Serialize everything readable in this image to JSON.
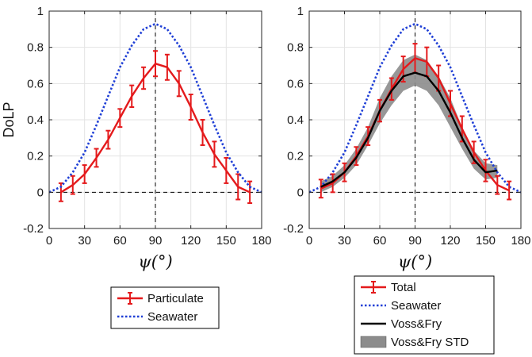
{
  "chart_data": [
    {
      "type": "line",
      "ylabel": "DoLP",
      "xlabel": "ψ(°)",
      "xlim": [
        0,
        180
      ],
      "ylim": [
        -0.2,
        1
      ],
      "xticks": [
        "0",
        "30",
        "60",
        "90",
        "120",
        "150",
        "180"
      ],
      "yticks": [
        "-0.2",
        "0",
        "0.2",
        "0.4",
        "0.6",
        "0.8",
        "1"
      ],
      "grid": true,
      "reference_lines": {
        "vertical_x": 90,
        "horizontal_y": 0
      },
      "legend_position": "below",
      "series": [
        {
          "name": "Particulate",
          "style": "red solid with error bars",
          "color": "#e41a1c",
          "x": [
            10,
            20,
            30,
            40,
            50,
            60,
            70,
            80,
            90,
            100,
            110,
            120,
            130,
            140,
            150,
            160,
            170
          ],
          "y": [
            0.0,
            0.04,
            0.1,
            0.19,
            0.29,
            0.41,
            0.53,
            0.63,
            0.71,
            0.69,
            0.6,
            0.47,
            0.33,
            0.21,
            0.12,
            0.03,
            0.0
          ],
          "err": [
            0.05,
            0.05,
            0.05,
            0.05,
            0.05,
            0.05,
            0.06,
            0.06,
            0.07,
            0.07,
            0.07,
            0.07,
            0.07,
            0.07,
            0.07,
            0.07,
            0.06
          ]
        },
        {
          "name": "Seawater",
          "style": "blue dotted",
          "color": "#1f3fd6",
          "x": [
            0,
            10,
            20,
            30,
            40,
            50,
            60,
            70,
            80,
            90,
            100,
            110,
            120,
            130,
            140,
            150,
            160,
            170,
            180
          ],
          "y": [
            0.0,
            0.03,
            0.11,
            0.22,
            0.37,
            0.53,
            0.69,
            0.81,
            0.9,
            0.93,
            0.9,
            0.81,
            0.69,
            0.53,
            0.37,
            0.22,
            0.11,
            0.03,
            0.0
          ]
        }
      ],
      "legend": [
        "Particulate",
        "Seawater"
      ]
    },
    {
      "type": "line",
      "ylabel": "",
      "xlabel": "ψ(°)",
      "xlim": [
        0,
        180
      ],
      "ylim": [
        -0.2,
        1
      ],
      "xticks": [
        "0",
        "30",
        "60",
        "90",
        "120",
        "150",
        "180"
      ],
      "yticks": [
        "-0.2",
        "0",
        "0.2",
        "0.4",
        "0.6",
        "0.8",
        "1"
      ],
      "grid": true,
      "reference_lines": {
        "vertical_x": 90,
        "horizontal_y": 0
      },
      "legend_position": "below",
      "series": [
        {
          "name": "Voss&Fry STD",
          "style": "gray band",
          "color": "#8c8c8c",
          "x": [
            10,
            20,
            30,
            40,
            50,
            60,
            70,
            80,
            90,
            100,
            110,
            120,
            130,
            140,
            150,
            160
          ],
          "lower": [
            0.0,
            0.03,
            0.08,
            0.15,
            0.26,
            0.38,
            0.48,
            0.56,
            0.59,
            0.56,
            0.48,
            0.36,
            0.24,
            0.13,
            0.07,
            0.08
          ],
          "upper": [
            0.06,
            0.09,
            0.15,
            0.24,
            0.36,
            0.52,
            0.64,
            0.73,
            0.76,
            0.73,
            0.64,
            0.52,
            0.36,
            0.23,
            0.16,
            0.15
          ]
        },
        {
          "name": "Seawater",
          "style": "blue dotted",
          "color": "#1f3fd6",
          "x": [
            0,
            10,
            20,
            30,
            40,
            50,
            60,
            70,
            80,
            90,
            100,
            110,
            120,
            130,
            140,
            150,
            160,
            170,
            180
          ],
          "y": [
            0.0,
            0.03,
            0.11,
            0.22,
            0.37,
            0.53,
            0.69,
            0.81,
            0.9,
            0.93,
            0.9,
            0.81,
            0.69,
            0.53,
            0.37,
            0.22,
            0.11,
            0.03,
            0.0
          ]
        },
        {
          "name": "Total",
          "style": "red solid with error bars",
          "color": "#e41a1c",
          "x": [
            10,
            20,
            30,
            40,
            50,
            60,
            70,
            80,
            90,
            100,
            110,
            120,
            130,
            140,
            150,
            160,
            170
          ],
          "y": [
            0.02,
            0.05,
            0.11,
            0.2,
            0.31,
            0.45,
            0.57,
            0.68,
            0.74,
            0.72,
            0.63,
            0.49,
            0.35,
            0.22,
            0.12,
            0.04,
            0.01
          ],
          "err": [
            0.05,
            0.05,
            0.05,
            0.05,
            0.05,
            0.06,
            0.06,
            0.07,
            0.08,
            0.08,
            0.07,
            0.07,
            0.07,
            0.06,
            0.06,
            0.05,
            0.05
          ]
        },
        {
          "name": "Voss&Fry",
          "style": "black solid",
          "color": "#000000",
          "x": [
            10,
            20,
            30,
            40,
            50,
            60,
            70,
            80,
            90,
            100,
            110,
            120,
            130,
            140,
            150,
            160
          ],
          "y": [
            0.03,
            0.06,
            0.11,
            0.19,
            0.3,
            0.45,
            0.56,
            0.64,
            0.66,
            0.64,
            0.56,
            0.44,
            0.3,
            0.18,
            0.11,
            0.12
          ]
        }
      ],
      "legend": [
        "Total",
        "Seawater",
        "Voss&Fry",
        "Voss&Fry STD"
      ]
    }
  ]
}
